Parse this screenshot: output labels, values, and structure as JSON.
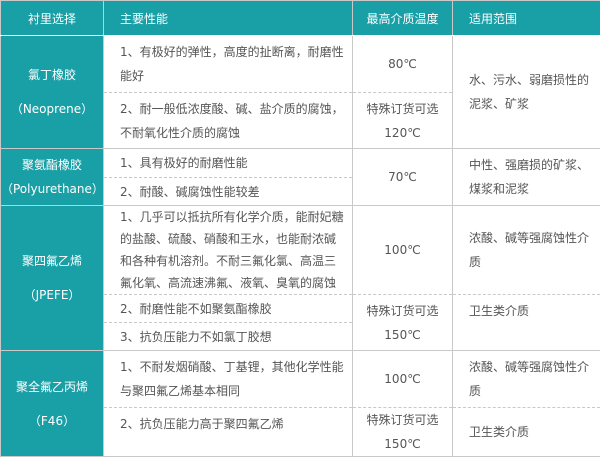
{
  "header": [
    "衬里选择",
    "主要性能",
    "最高介质温度",
    "适用范围"
  ],
  "neoprene": {
    "name": "氯丁橡胶",
    "sub": "（Neoprene）",
    "props": [
      "1、有极好的弹性，高度的扯断离，耐磨性能好",
      "2、耐一般低浓度酸、碱、盐介质的腐蚀，不耐氧化性介质的腐蚀"
    ],
    "temp1": "80℃",
    "temp2a": "特殊订货可选",
    "temp2b": "120℃",
    "scope": "水、污水、弱磨损性的泥浆、矿浆"
  },
  "pu": {
    "name": "聚氨酯橡胶",
    "sub": "（Polyurethane）",
    "props": [
      "1、具有极好的耐磨性能",
      "2、耐酸、碱腐蚀性能较差"
    ],
    "temp": "70℃",
    "scope": "中性、强磨损的矿浆、煤浆和泥浆"
  },
  "ptfe": {
    "name": "聚四氟乙烯",
    "sub": "（JPEFE）",
    "props": [
      "1、几乎可以抵抗所有化学介质，能耐妃糖的盐酸、硫酸、硝酸和王水，也能耐浓碱和各种有机溶剂。不耐三氟化氯、高温三氟化氧、高流速沸氟、液氧、臭氧的腐蚀",
      "2、耐磨性能不如聚氨酯橡胶",
      "3、抗负压能力不如氯丁胶想"
    ],
    "temp1": "100℃",
    "temp2a": "特殊订货可选",
    "temp2b": "150℃",
    "scope1": "浓酸、碱等强腐蚀性介质",
    "scope2": "卫生类介质"
  },
  "f46": {
    "name": "聚全氟乙丙烯",
    "sub": "（F46）",
    "props": [
      "1、不耐发烟硝酸、丁基锂，其他化学性能与聚四氟乙烯基本相同",
      "2、抗负压能力高于聚四氟乙烯"
    ],
    "temp1": "100℃",
    "temp2a": "特殊订货可选",
    "temp2b": "150℃",
    "scope1": "浓酸、碱等强腐蚀性介质",
    "scope2": "卫生类介质"
  },
  "colors": {
    "header_bg": "#199fa6",
    "text": "#555555",
    "border": "#c9c9c9"
  }
}
